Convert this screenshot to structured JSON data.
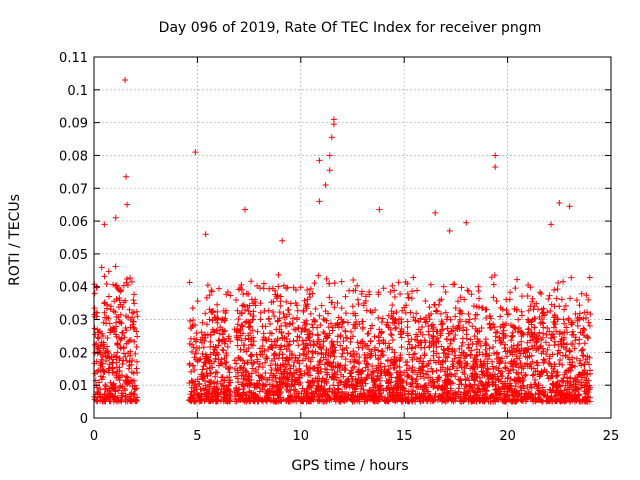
{
  "chart_data": {
    "type": "scatter",
    "title": "Day 096 of 2019, Rate Of TEC Index for receiver pngm",
    "xlabel": "GPS time / hours",
    "ylabel": "ROTI / TECUs",
    "xlim": [
      0,
      25
    ],
    "ylim": [
      0,
      0.11
    ],
    "xticks": [
      0,
      5,
      10,
      15,
      20,
      25
    ],
    "xtick_labels": [
      "0",
      "5",
      "10",
      "15",
      "20",
      "25"
    ],
    "yticks": [
      0,
      0.01,
      0.02,
      0.03,
      0.04,
      0.05,
      0.06,
      0.07,
      0.08,
      0.09,
      0.1,
      0.11
    ],
    "ytick_labels": [
      "0",
      "0.01",
      "0.02",
      "0.03",
      "0.04",
      "0.05",
      "0.06",
      "0.07",
      "0.08",
      "0.09",
      "0.1",
      "0.11"
    ],
    "grid": true,
    "marker": "+",
    "color": "#ff0000",
    "data_gaps_hours": [
      [
        2.1,
        4.6
      ],
      [
        6.6,
        6.8
      ]
    ],
    "outliers": [
      {
        "x": 1.5,
        "y": 0.103
      },
      {
        "x": 1.55,
        "y": 0.0735
      },
      {
        "x": 1.05,
        "y": 0.061
      },
      {
        "x": 0.5,
        "y": 0.059
      },
      {
        "x": 4.9,
        "y": 0.081
      },
      {
        "x": 5.4,
        "y": 0.056
      },
      {
        "x": 7.3,
        "y": 0.0635
      },
      {
        "x": 11.6,
        "y": 0.091
      },
      {
        "x": 11.6,
        "y": 0.0895
      },
      {
        "x": 11.5,
        "y": 0.0855
      },
      {
        "x": 11.4,
        "y": 0.08
      },
      {
        "x": 11.4,
        "y": 0.0755
      },
      {
        "x": 10.9,
        "y": 0.0785
      },
      {
        "x": 11.2,
        "y": 0.071
      },
      {
        "x": 10.9,
        "y": 0.066
      },
      {
        "x": 19.4,
        "y": 0.08
      },
      {
        "x": 19.4,
        "y": 0.0765
      },
      {
        "x": 13.8,
        "y": 0.0635
      },
      {
        "x": 16.5,
        "y": 0.0625
      },
      {
        "x": 18.0,
        "y": 0.0595
      },
      {
        "x": 22.5,
        "y": 0.0655
      },
      {
        "x": 23.0,
        "y": 0.0645
      },
      {
        "x": 22.1,
        "y": 0.059
      },
      {
        "x": 9.1,
        "y": 0.054
      },
      {
        "x": 17.2,
        "y": 0.057
      },
      {
        "x": 1.6,
        "y": 0.065
      }
    ],
    "bulk_ranges": [
      {
        "x": [
          0.0,
          2.1
        ],
        "y": [
          0.005,
          0.05
        ]
      },
      {
        "x": [
          4.6,
          6.6
        ],
        "y": [
          0.005,
          0.045
        ]
      },
      {
        "x": [
          6.8,
          24.0
        ],
        "y": [
          0.005,
          0.045
        ]
      }
    ]
  }
}
